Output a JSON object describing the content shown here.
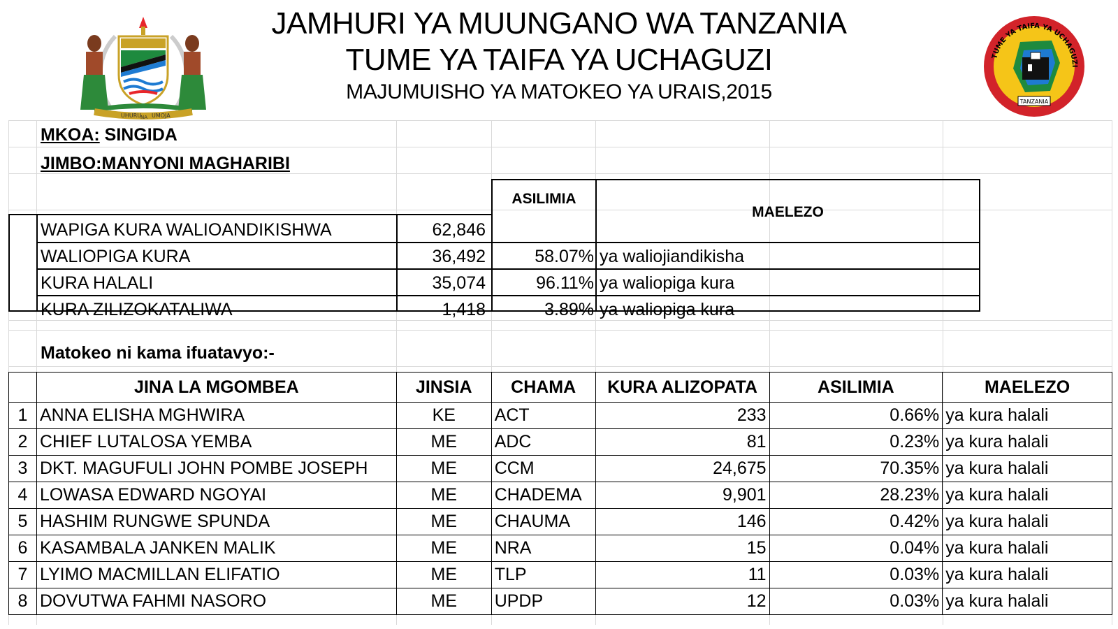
{
  "header": {
    "line1": "JAMHURI YA MUUNGANO WA TANZANIA",
    "line2": "TUME YA TAIFA YA UCHAGUZI",
    "line3": "MAJUMUISHO YA MATOKEO YA URAIS,2015"
  },
  "logos": {
    "left_icon": "coat-of-arms-icon",
    "left_motto_a": "UHURU",
    "left_motto_b": "NA",
    "left_motto_c": "UMOJA",
    "right_icon": "election-commission-seal-icon",
    "right_seal_top": "TUME YA TAIFA YA UCHAGUZI",
    "right_seal_bottom": "TANZANIA"
  },
  "location": {
    "region_label": "MKOA:",
    "region_value": "SINGIDA",
    "constituency_label": "JIMBO:MANYONI MAGHARIBI"
  },
  "summary": {
    "percent_header": "ASILIMIA",
    "notes_header": "MAELEZO",
    "rows": [
      {
        "label": "WAPIGA KURA WALIOANDIKISHWA",
        "value": "62,846",
        "percent": "",
        "note": ""
      },
      {
        "label": "WALIOPIGA KURA",
        "value": "36,492",
        "percent": "58.07%",
        "note": "ya waliojiandikisha"
      },
      {
        "label": "KURA HALALI",
        "value": "35,074",
        "percent": "96.11%",
        "note": "ya waliopiga kura"
      },
      {
        "label": "KURA ZILIZOKATALIWA",
        "value": "1,418",
        "percent": "3.89%",
        "note": "ya waliopiga kura"
      }
    ]
  },
  "results_intro": "Matokeo ni kama ifuatavyo:-",
  "results": {
    "headers": {
      "name": "JINA LA MGOMBEA",
      "gender": "JINSIA",
      "party": "CHAMA",
      "votes": "KURA ALIZOPATA",
      "percent": "ASILIMIA",
      "notes": "MAELEZO"
    },
    "rows": [
      {
        "no": "1",
        "name": "ANNA ELISHA MGHWIRA",
        "gender": "KE",
        "party": "ACT",
        "votes": "233",
        "percent": "0.66%",
        "note": "ya kura halali"
      },
      {
        "no": "2",
        "name": "CHIEF LUTALOSA YEMBA",
        "gender": "ME",
        "party": "ADC",
        "votes": "81",
        "percent": "0.23%",
        "note": "ya kura halali"
      },
      {
        "no": "3",
        "name": "DKT. MAGUFULI JOHN POMBE JOSEPH",
        "gender": "ME",
        "party": "CCM",
        "votes": "24,675",
        "percent": "70.35%",
        "note": "ya kura halali"
      },
      {
        "no": "4",
        "name": "LOWASA EDWARD NGOYAI",
        "gender": "ME",
        "party": "CHADEMA",
        "votes": "9,901",
        "percent": "28.23%",
        "note": "ya kura halali"
      },
      {
        "no": "5",
        "name": "HASHIM RUNGWE SPUNDA",
        "gender": "ME",
        "party": "CHAUMA",
        "votes": "146",
        "percent": "0.42%",
        "note": "ya kura halali"
      },
      {
        "no": "6",
        "name": "KASAMBALA JANKEN MALIK",
        "gender": "ME",
        "party": "NRA",
        "votes": "15",
        "percent": "0.04%",
        "note": "ya kura halali"
      },
      {
        "no": "7",
        "name": "LYIMO MACMILLAN ELIFATIO",
        "gender": "ME",
        "party": "TLP",
        "votes": "11",
        "percent": "0.03%",
        "note": "ya kura halali"
      },
      {
        "no": "8",
        "name": "DOVUTWA FAHMI NASORO",
        "gender": "ME",
        "party": "UPDP",
        "votes": "12",
        "percent": "0.03%",
        "note": "ya kura halali"
      }
    ]
  }
}
